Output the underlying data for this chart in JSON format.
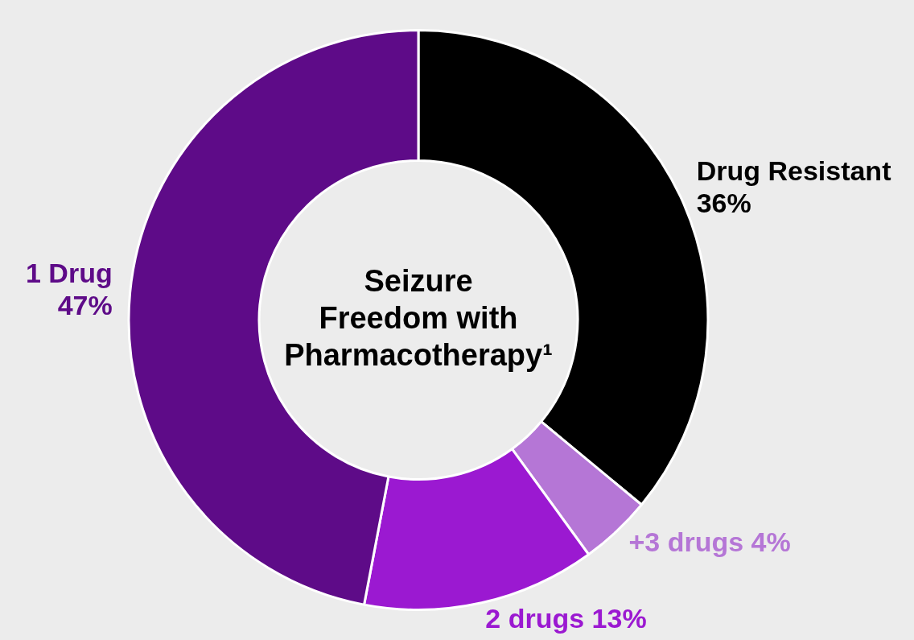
{
  "chart_data": {
    "type": "donut",
    "title": "Seizure Freedom with Pharmacotherapy¹",
    "categories": [
      "Drug Resistant",
      "+3 drugs",
      "2 drugs",
      "1 Drug"
    ],
    "values": [
      36,
      4,
      13,
      47
    ],
    "value_labels": [
      "36%",
      "4%",
      "13%",
      "47%"
    ],
    "colors": [
      "#000000",
      "#b576d6",
      "#9b19d1",
      "#5e0b88"
    ],
    "legend": false
  }
}
